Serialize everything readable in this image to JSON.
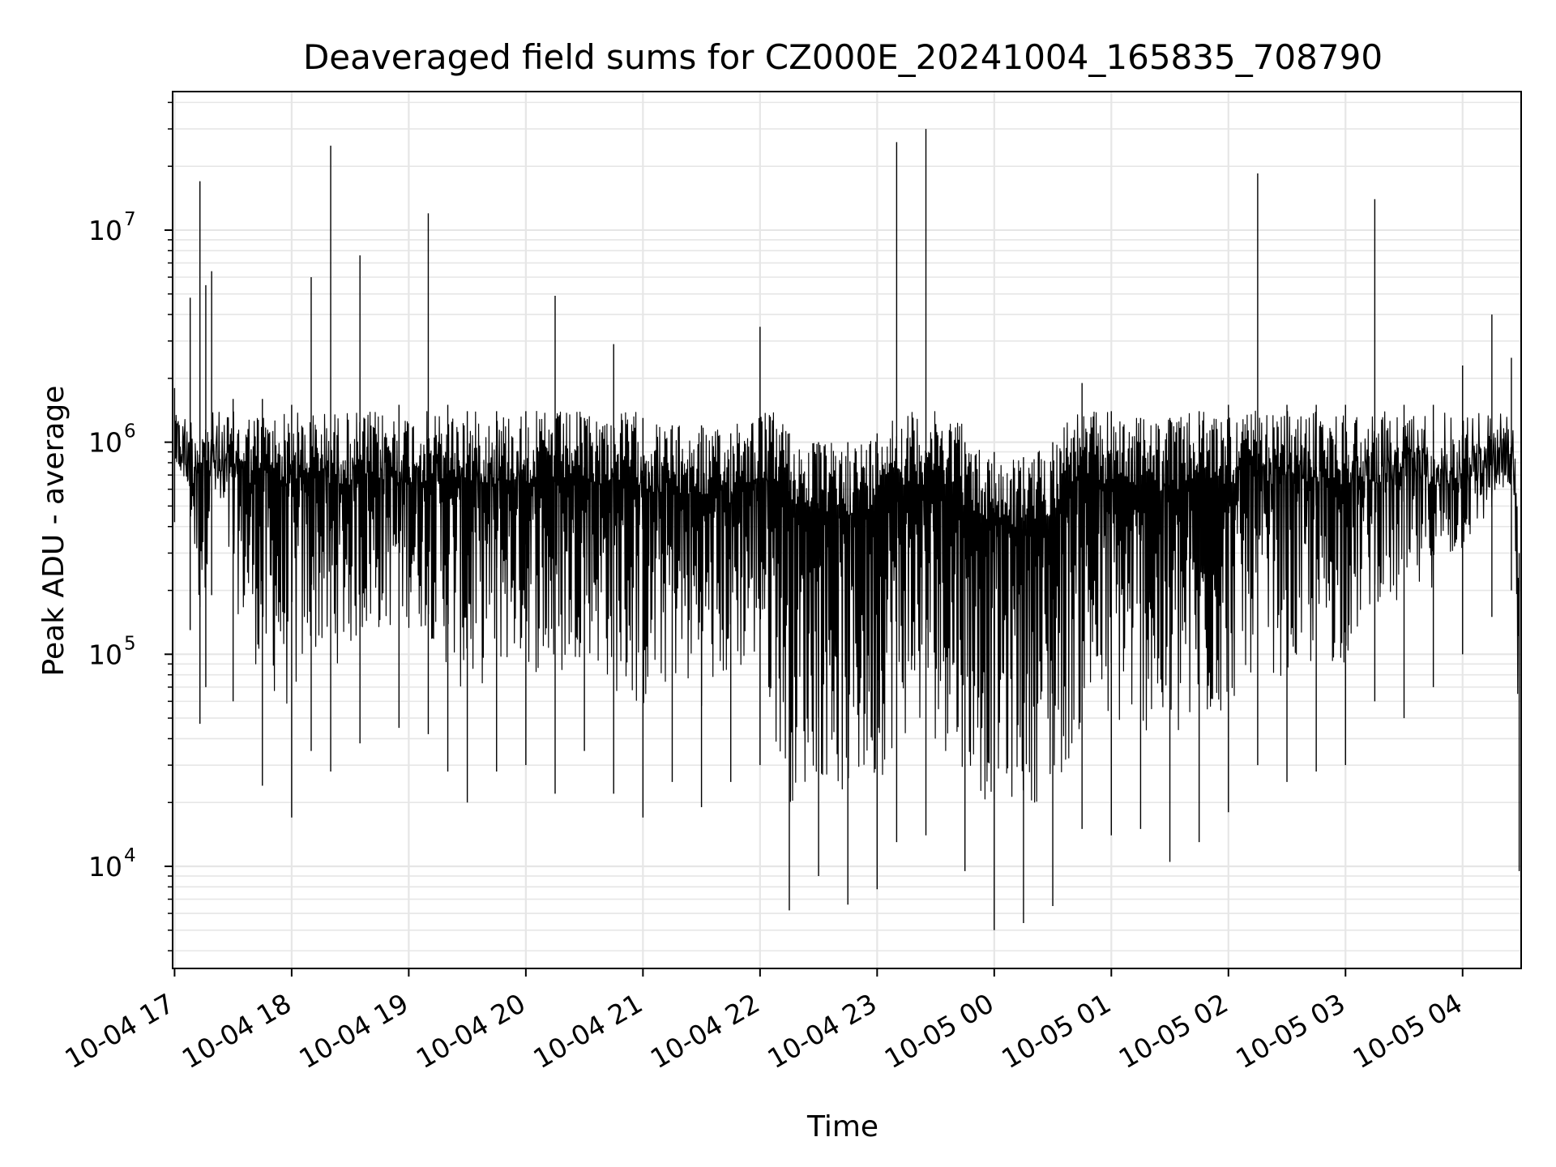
{
  "chart_data": {
    "type": "line",
    "title": "Deaveraged field sums for CZ000E_20241004_165835_708790",
    "xlabel": "Time",
    "ylabel": "Peak ADU - average",
    "xlim": [
      "2024-10-04T16:59:00",
      "2024-10-05T04:30:00"
    ],
    "ylim": [
      3300,
      45000000
    ],
    "yscale": "log",
    "grid": true,
    "line_color": "#000000",
    "grid_color": "#e6e6e6",
    "xticks": [
      {
        "t": "2024-10-04T17:00:00",
        "label": "10-04 17"
      },
      {
        "t": "2024-10-04T18:00:00",
        "label": "10-04 18"
      },
      {
        "t": "2024-10-04T19:00:00",
        "label": "10-04 19"
      },
      {
        "t": "2024-10-04T20:00:00",
        "label": "10-04 20"
      },
      {
        "t": "2024-10-04T21:00:00",
        "label": "10-04 21"
      },
      {
        "t": "2024-10-04T22:00:00",
        "label": "10-04 22"
      },
      {
        "t": "2024-10-04T23:00:00",
        "label": "10-04 23"
      },
      {
        "t": "2024-10-05T00:00:00",
        "label": "10-05 00"
      },
      {
        "t": "2024-10-05T01:00:00",
        "label": "10-05 01"
      },
      {
        "t": "2024-10-05T02:00:00",
        "label": "10-05 02"
      },
      {
        "t": "2024-10-05T03:00:00",
        "label": "10-05 03"
      },
      {
        "t": "2024-10-05T04:00:00",
        "label": "10-05 04"
      }
    ],
    "yticks": [
      {
        "value": 10000,
        "base": "10",
        "exp": "4"
      },
      {
        "value": 100000,
        "base": "10",
        "exp": "5"
      },
      {
        "value": 1000000,
        "base": "10",
        "exp": "6"
      },
      {
        "value": 10000000,
        "base": "10",
        "exp": "7"
      }
    ],
    "series": [
      {
        "x": [
          "2024-10-04T17:00:00",
          "2024-10-04T17:08:00",
          "2024-10-04T17:13:00",
          "2024-10-04T17:16:00",
          "2024-10-04T17:19:00",
          "2024-10-04T17:30:00",
          "2024-10-04T17:45:00",
          "2024-10-04T18:00:00",
          "2024-10-04T18:10:00",
          "2024-10-04T18:20:00",
          "2024-10-04T18:35:00",
          "2024-10-04T18:55:00",
          "2024-10-04T19:10:00",
          "2024-10-04T19:20:00",
          "2024-10-04T19:30:00",
          "2024-10-04T19:45:00",
          "2024-10-04T20:00:00",
          "2024-10-04T20:15:00",
          "2024-10-04T20:30:00",
          "2024-10-04T20:45:00",
          "2024-10-04T21:00:00",
          "2024-10-04T21:15:00",
          "2024-10-04T21:30:00",
          "2024-10-04T21:45:00",
          "2024-10-04T22:00:00",
          "2024-10-04T22:15:00",
          "2024-10-04T22:30:00",
          "2024-10-04T22:45:00",
          "2024-10-04T23:00:00",
          "2024-10-04T23:10:00",
          "2024-10-04T23:25:00",
          "2024-10-04T23:45:00",
          "2024-10-05T00:00:00",
          "2024-10-05T00:15:00",
          "2024-10-05T00:30:00",
          "2024-10-05T00:45:00",
          "2024-10-05T01:00:00",
          "2024-10-05T01:15:00",
          "2024-10-05T01:30:00",
          "2024-10-05T01:45:00",
          "2024-10-05T02:00:00",
          "2024-10-05T02:15:00",
          "2024-10-05T02:30:00",
          "2024-10-05T02:45:00",
          "2024-10-05T03:00:00",
          "2024-10-05T03:15:00",
          "2024-10-05T03:30:00",
          "2024-10-05T03:45:00",
          "2024-10-05T04:00:00",
          "2024-10-05T04:15:00",
          "2024-10-05T04:25:00",
          "2024-10-05T04:29:00"
        ],
        "high": [
          1800000,
          4800000,
          17000000,
          5500000,
          6400000,
          1600000,
          1600000,
          1500000,
          6000000,
          25000000,
          7600000,
          1500000,
          12000000,
          1500000,
          1400000,
          1400000,
          1400000,
          4900000,
          1300000,
          2900000,
          1300000,
          1200000,
          1200000,
          1100000,
          3500000,
          1100000,
          1000000,
          1000000,
          1100000,
          26000000,
          30000000,
          1000000,
          900000,
          850000,
          1000000,
          1900000,
          1400000,
          1300000,
          1300000,
          1400000,
          1500000,
          18500000,
          1500000,
          1500000,
          1500000,
          14000000,
          1500000,
          1500000,
          2300000,
          4000000,
          2500000,
          300000
        ],
        "low": [
          420000,
          130000,
          47000,
          70000,
          190000,
          60000,
          24000,
          17000,
          35000,
          28000,
          38000,
          45000,
          42000,
          28000,
          20000,
          28000,
          30000,
          22000,
          35000,
          22000,
          17000,
          25000,
          19000,
          25000,
          30000,
          6200,
          9000,
          6600,
          7800,
          13000,
          14000,
          9500,
          5000,
          5400,
          6500,
          15000,
          14000,
          15000,
          10500,
          13000,
          18000,
          30000,
          25000,
          28000,
          30000,
          60000,
          50000,
          70000,
          100000,
          150000,
          200000,
          9500
        ]
      }
    ]
  }
}
